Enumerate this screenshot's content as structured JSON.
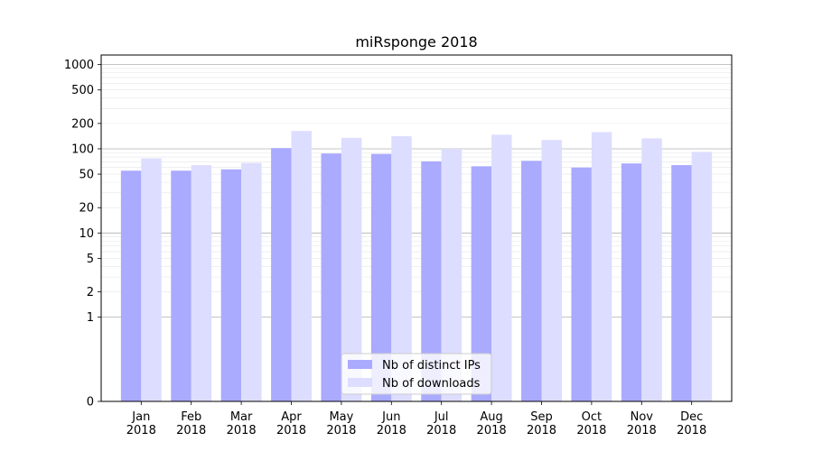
{
  "chart_data": {
    "type": "bar",
    "title": "miRsponge 2018",
    "xlabel": "",
    "ylabel": "",
    "y_scale": "symlog",
    "ylim": [
      0,
      1300
    ],
    "y_ticks": [
      0,
      1,
      2,
      5,
      10,
      20,
      50,
      100,
      200,
      500,
      1000
    ],
    "categories": [
      "Jan\n2018",
      "Feb\n2018",
      "Mar\n2018",
      "Apr\n2018",
      "May\n2018",
      "Jun\n2018",
      "Jul\n2018",
      "Aug\n2018",
      "Sep\n2018",
      "Oct\n2018",
      "Nov\n2018",
      "Dec\n2018"
    ],
    "series": [
      {
        "name": "Nb of distinct IPs",
        "color": "#aaaaff",
        "values": [
          55,
          55,
          57,
          102,
          88,
          87,
          71,
          62,
          72,
          60,
          67,
          64
        ]
      },
      {
        "name": "Nb of downloads",
        "color": "#ddddff",
        "values": [
          77,
          64,
          68,
          163,
          135,
          141,
          100,
          147,
          127,
          158,
          133,
          92
        ]
      }
    ],
    "grid": true,
    "legend_position": "bottom-center"
  }
}
